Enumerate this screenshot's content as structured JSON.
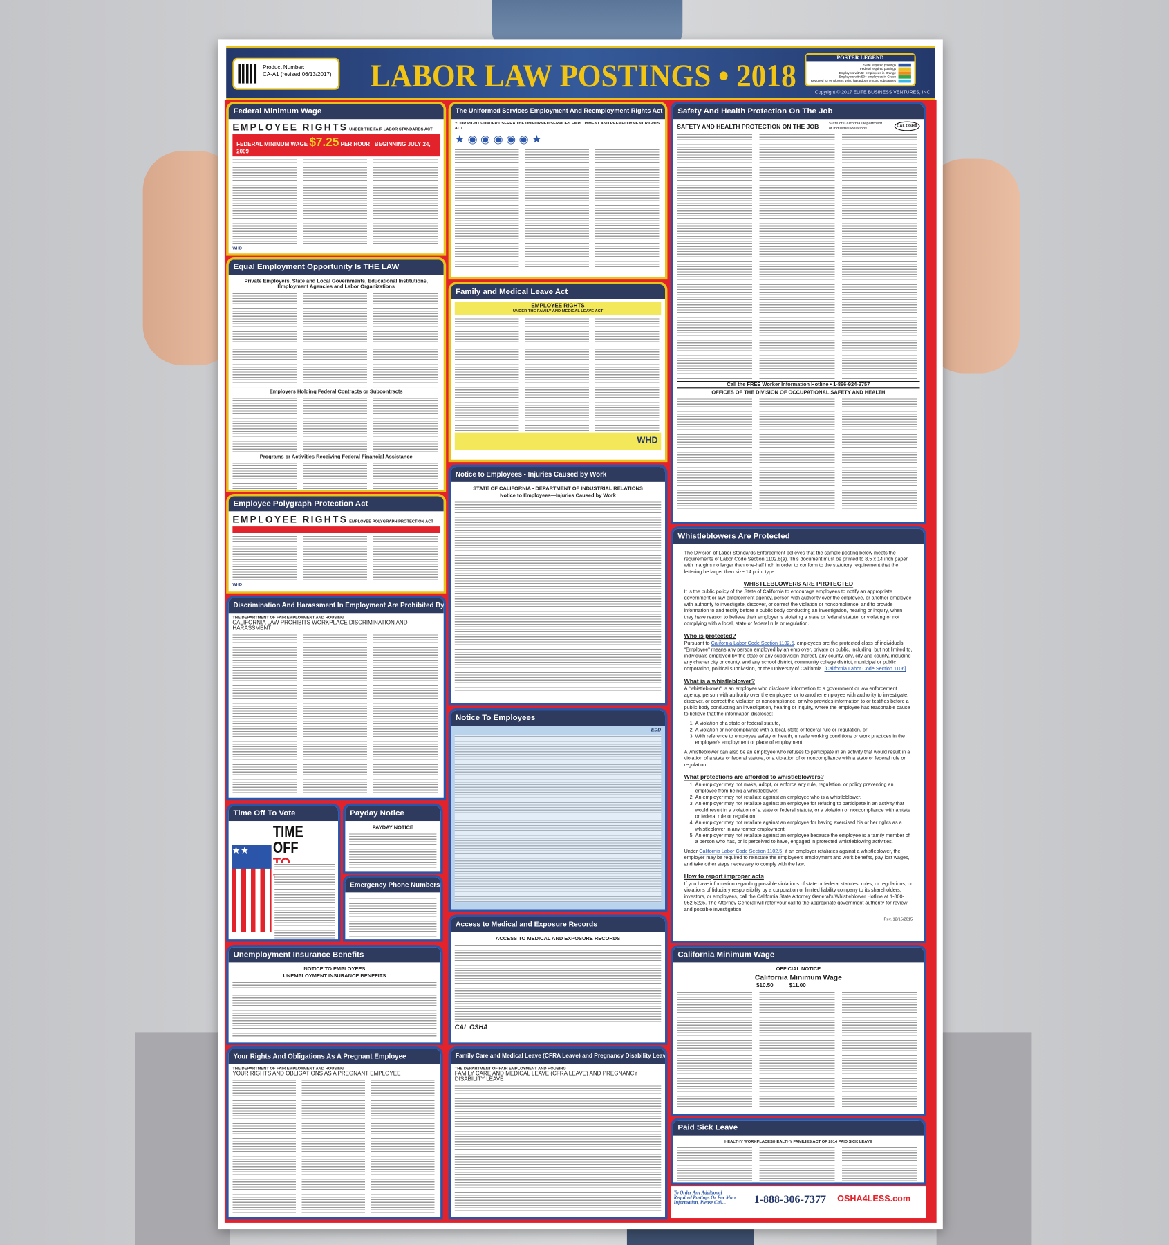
{
  "header": {
    "product_label": "Product Number:",
    "product_number": "CA-A1 (revised 06/13/2017)",
    "title": "LABOR LAW POSTINGS • 2018",
    "legend_title": "POSTER LEGEND",
    "legend": [
      {
        "label": "State required postings",
        "color": "#2a55a8"
      },
      {
        "label": "Federal required postings",
        "color": "#e8c21b"
      },
      {
        "label": "Employers with 5+ employees in Orange",
        "color": "#f08a1c"
      },
      {
        "label": "Employers with 50+ employees in Green",
        "color": "#2ea84a"
      },
      {
        "label": "Required for employers using hazardous or toxic substances",
        "color": "#38b6e8"
      }
    ],
    "copyright": "Copyright © 2017 ELITE BUSINESS VENTURES, INC"
  },
  "sections": {
    "fmw": {
      "title": "Federal Minimum Wage",
      "h1": "EMPLOYEE RIGHTS",
      "h1sub": "UNDER THE FAIR LABOR STANDARDS ACT",
      "bar_label": "FEDERAL MINIMUM WAGE",
      "wage": "$7.25",
      "per": "PER HOUR",
      "since": "BEGINNING JULY 24, 2009",
      "agency": "WHD"
    },
    "eeo": {
      "title": "Equal Employment Opportunity Is THE LAW",
      "h1": "Private Employers, State and Local Governments, Educational Institutions, Employment Agencies and Labor Organizations",
      "h2": "Employers Holding Federal Contracts or Subcontracts",
      "h3": "Programs or Activities Receiving Federal Financial Assistance"
    },
    "poly": {
      "title": "Employee Polygraph Protection Act",
      "h1": "EMPLOYEE RIGHTS",
      "h1sub": "EMPLOYEE POLYGRAPH PROTECTION ACT",
      "agency": "WHD"
    },
    "disc": {
      "title": "Discrimination And Harassment In Employment Are Prohibited By Law",
      "h1": "THE DEPARTMENT OF FAIR EMPLOYMENT AND HOUSING",
      "h2": "CALIFORNIA LAW PROHIBITS WORKPLACE DISCRIMINATION AND HARASSMENT"
    },
    "vote": {
      "title": "Time Off To Vote",
      "l1": "TIME OFF",
      "l2": "TO VOTE"
    },
    "payday": {
      "title": "Payday Notice",
      "h1": "PAYDAY NOTICE"
    },
    "emerg": {
      "title": "Emergency Phone Numbers"
    },
    "unemp": {
      "title": "Unemployment Insurance Benefits",
      "h1": "NOTICE TO EMPLOYEES",
      "h2": "UNEMPLOYMENT INSURANCE BENEFITS"
    },
    "preg": {
      "title": "Your Rights And Obligations As A Pregnant Employee",
      "h1": "THE DEPARTMENT OF FAIR EMPLOYMENT AND HOUSING",
      "h2": "YOUR RIGHTS AND OBLIGATIONS AS A PREGNANT EMPLOYEE"
    },
    "userra": {
      "title": "The Uniformed Services Employment And Reemployment Rights Act",
      "h1": "YOUR RIGHTS UNDER USERRA THE UNIFORMED SERVICES EMPLOYMENT AND REEMPLOYMENT RIGHTS ACT"
    },
    "fmla": {
      "title": "Family and Medical Leave Act",
      "h1": "EMPLOYEE RIGHTS",
      "h2": "UNDER THE FAMILY AND MEDICAL LEAVE ACT",
      "agency": "WHD"
    },
    "inj": {
      "title": "Notice to Employees - Injuries Caused by Work",
      "h1": "STATE OF CALIFORNIA - DEPARTMENT OF INDUSTRIAL RELATIONS",
      "h2": "Notice to Employees—Injuries Caused by Work"
    },
    "nte": {
      "title": "Notice To Employees",
      "agency": "EDD"
    },
    "access": {
      "title": "Access to Medical and Exposure Records",
      "h1": "ACCESS TO MEDICAL AND EXPOSURE RECORDS",
      "logo": "CAL OSHA"
    },
    "cfra": {
      "title": "Family Care and Medical Leave (CFRA Leave) and Pregnancy Disability Leave",
      "h1": "THE DEPARTMENT OF FAIR EMPLOYMENT AND HOUSING",
      "h2": "FAMILY CARE AND MEDICAL LEAVE (CFRA LEAVE) AND PREGNANCY DISABILITY LEAVE"
    },
    "safety": {
      "title": "Safety And Health Protection On The Job",
      "h1": "SAFETY AND HEALTH PROTECTION ON THE JOB",
      "agency": "State of California Department of Industrial Relations",
      "logo": "CAL OSHA",
      "hotline": "Call the FREE Worker Information Hotline • 1-866-924-9757",
      "offices": "OFFICES OF THE DIVISION OF OCCUPATIONAL SAFETY AND HEALTH"
    },
    "wb": {
      "title": "Whistleblowers Are Protected",
      "intro": "The Division of Labor Standards Enforcement believes that the sample posting below meets the requirements of Labor Code Section 1102.8(a). This document must be printed to 8.5 x 14 inch paper with margins no larger than one-half inch in order to conform to the statutory requirement that the lettering be larger than size 14 point type.",
      "h_main": "WHISTLEBLOWERS ARE PROTECTED",
      "p1": "It is the public policy of the State of California to encourage employees to notify an appropriate government or law enforcement agency, person with authority over the employee, or another employee with authority to investigate, discover, or correct the violation or noncompliance, and to provide information to and testify before a public body conducting an investigation, hearing or inquiry, when they have reason to believe their employer is violating a state or federal statute, or violating or not complying with a local, state or federal rule or regulation.",
      "h_who": "Who is protected?",
      "p_who_pre": "Pursuant to ",
      "p_who_link": "California Labor Code Section 1102.5",
      "p_who": ", employees are the protected class of individuals. \"Employee\" means any person employed by an employer, private or public, including, but not limited to, individuals employed by the state or any subdivision thereof, any county, city, city and county, including any charter city or county, and any school district, community college district, municipal or public corporation, political subdivision, or the University of California.",
      "p_who_link2": "[California Labor Code Section 1106]",
      "h_what": "What is a whistleblower?",
      "p_what": "A \"whistleblower\" is an employee who discloses information to a government or law enforcement agency, person with authority over the employee, or to another employee with authority to investigate, discover, or correct the violation or noncompliance, or who provides information to or testifies before a public body conducting an investigation, hearing or inquiry, where the employee has reasonable cause to believe that the information discloses:",
      "what_list": [
        "A violation of a state or federal statute,",
        "A violation or noncompliance with a local, state or federal rule or regulation, or",
        "With reference to employee safety or health, unsafe working conditions or work practices in the employee's employment or place of employment."
      ],
      "p_what2": "A whistleblower can also be an employee who refuses to participate in an activity that would result in a violation of a state or federal statute, or a violation of or noncompliance with a state or federal rule or regulation.",
      "h_prot": "What protections are afforded to whistleblowers?",
      "prot_list": [
        "An employer may not make, adopt, or enforce any rule, regulation, or policy preventing an employee from being a whistleblower.",
        "An employer may not retaliate against an employee who is a whistleblower.",
        "An employer may not retaliate against an employee for refusing to participate in an activity that would result in a violation of a state or federal statute, or a violation or noncompliance with a state or federal rule or regulation.",
        "An employer may not retaliate against an employee for having exercised his or her rights as a whistleblower in any former employment.",
        "An employer may not retaliate against an employee because the employee is a family member of a person who has, or is perceived to have, engaged in protected whistleblowing activities."
      ],
      "p_under_pre": "Under ",
      "p_under_link": "California Labor Code Section 1102.5",
      "p_under": ", if an employer retaliates against a whistleblower, the employer may be required to reinstate the employee's employment and work benefits, pay lost wages, and take other steps necessary to comply with the law.",
      "h_how": "How to report improper acts",
      "p_how": "If you have information regarding possible violations of state or federal statutes, rules, or regulations, or violations of fiduciary responsibility by a corporation or limited liability company to its shareholders, investors, or employees, call the California State Attorney General's Whistleblower Hotline at 1-800-952-5225. The Attorney General will refer your call to the appropriate government authority for review and possible investigation.",
      "rev": "Rev. 12/15/2015"
    },
    "camw": {
      "title": "California Minimum Wage",
      "h1": "OFFICIAL NOTICE",
      "h2": "California Minimum Wage",
      "rates": [
        "$10.50",
        "$11.00"
      ]
    },
    "psl": {
      "title": "Paid Sick Leave",
      "h1": "HEALTHY WORKPLACES/HEALTHY FAMILIES ACT OF 2014 PAID SICK LEAVE"
    }
  },
  "footer": {
    "order_text": "To Order Any Additional Required Postings Or For More Information, Please Call...",
    "phone": "1-888-306-7377",
    "brand": "OSHA4LESS.com"
  }
}
